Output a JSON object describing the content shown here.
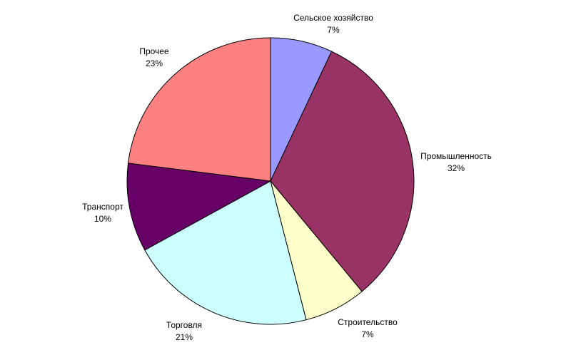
{
  "chart_data": {
    "type": "pie",
    "title": "",
    "slices": [
      {
        "label": "Сельское хозяйство",
        "pct_text": "7%",
        "value": 7,
        "color": "#9999FF"
      },
      {
        "label": "Промышленность",
        "pct_text": "32%",
        "value": 32,
        "color": "#993366"
      },
      {
        "label": "Строительство",
        "pct_text": "7%",
        "value": 7,
        "color": "#FFFFCC"
      },
      {
        "label": "Торговля",
        "pct_text": "21%",
        "value": 21,
        "color": "#CCFFFF"
      },
      {
        "label": "Транспорт",
        "pct_text": "10%",
        "value": 10,
        "color": "#660066"
      },
      {
        "label": "Прочее",
        "pct_text": "23%",
        "value": 23,
        "color": "#FF8080"
      }
    ],
    "legend": "none",
    "data_labels": "outside"
  }
}
